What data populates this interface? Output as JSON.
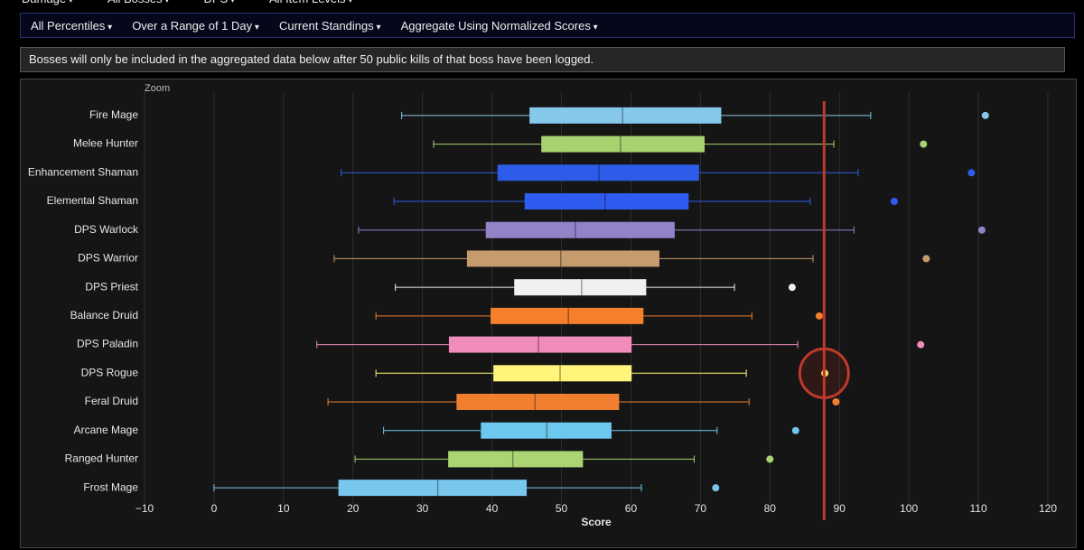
{
  "top_menu": [
    "Damage",
    "All Bosses",
    "DPS",
    "All Item Levels"
  ],
  "filter_menu": [
    "All Percentiles",
    "Over a Range of 1 Day",
    "Current Standings",
    "Aggregate Using Normalized Scores"
  ],
  "notice": "Bosses will only be included in the aggregated data below after 50 public kills of that boss have been logged.",
  "zoom_label": "Zoom",
  "chart_data": {
    "type": "boxplot",
    "x_label": "Score",
    "categories": [
      "Fire Mage",
      "Melee Hunter",
      "Enhancement Shaman",
      "Elemental Shaman",
      "DPS Warlock",
      "DPS Warrior",
      "DPS Priest",
      "Balance Druid",
      "DPS Paladin",
      "DPS Rogue",
      "Feral Druid",
      "Arcane Mage",
      "Ranged Hunter",
      "Frost Mage"
    ],
    "boxes": [
      {
        "min": 27.0,
        "q1": 45.4,
        "median": 58.8,
        "q3": 73.0,
        "max": 94.5,
        "outlier": 111.0,
        "color": "#86c8ea"
      },
      {
        "min": 31.6,
        "q1": 47.1,
        "median": 58.5,
        "q3": 70.6,
        "max": 89.2,
        "outlier": 102.1,
        "color": "#a8d26f"
      },
      {
        "min": 18.3,
        "q1": 40.8,
        "median": 55.4,
        "q3": 69.8,
        "max": 92.7,
        "outlier": 109.0,
        "color": "#2c5ce8"
      },
      {
        "min": 25.9,
        "q1": 44.7,
        "median": 56.3,
        "q3": 68.3,
        "max": 85.8,
        "outlier": 97.9,
        "color": "#2f5cf0"
      },
      {
        "min": 20.8,
        "q1": 39.1,
        "median": 52.0,
        "q3": 66.3,
        "max": 92.1,
        "outlier": 110.5,
        "color": "#9482c9"
      },
      {
        "min": 17.3,
        "q1": 36.4,
        "median": 49.9,
        "q3": 64.1,
        "max": 86.2,
        "outlier": 102.5,
        "color": "#c69b6d"
      },
      {
        "min": 26.1,
        "q1": 43.2,
        "median": 52.9,
        "q3": 62.2,
        "max": 74.9,
        "outlier": 83.2,
        "color": "#f0f0f0"
      },
      {
        "min": 23.3,
        "q1": 39.8,
        "median": 51.0,
        "q3": 61.8,
        "max": 77.4,
        "outlier": 87.1,
        "color": "#f57f2a"
      },
      {
        "min": 14.8,
        "q1": 33.8,
        "median": 46.7,
        "q3": 60.1,
        "max": 84.0,
        "outlier": 101.7,
        "color": "#f08cbc"
      },
      {
        "min": 23.3,
        "q1": 40.2,
        "median": 49.8,
        "q3": 60.1,
        "max": 76.6,
        "outlier": 87.9,
        "color": "#fff57a"
      },
      {
        "min": 16.4,
        "q1": 34.9,
        "median": 46.2,
        "q3": 58.3,
        "max": 77.0,
        "outlier": 89.5,
        "color": "#f08030"
      },
      {
        "min": 24.4,
        "q1": 38.4,
        "median": 47.9,
        "q3": 57.2,
        "max": 72.4,
        "outlier": 83.7,
        "color": "#6cc8ee"
      },
      {
        "min": 20.3,
        "q1": 33.7,
        "median": 43.0,
        "q3": 53.1,
        "max": 69.1,
        "outlier": 80.0,
        "color": "#abd473"
      },
      {
        "min": 0,
        "q1": 17.9,
        "median": 32.2,
        "q3": 45.0,
        "max": 61.5,
        "outlier": 72.2,
        "color": "#78c8ee"
      }
    ],
    "reference_line": 87.8,
    "reference_color": "#c0392b",
    "xlim": [
      -10,
      120
    ],
    "xticks": [
      {
        "value": -10,
        "label": "−10"
      },
      0,
      10,
      20,
      30,
      40,
      50,
      60,
      70,
      80,
      90,
      100,
      110,
      120
    ],
    "grid": true
  }
}
